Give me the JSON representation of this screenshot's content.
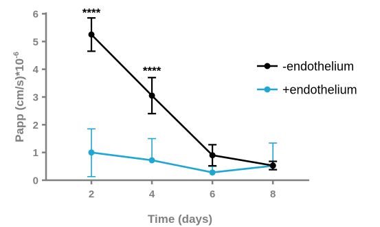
{
  "chart_data": {
    "type": "line",
    "xlabel": "Time (days)",
    "ylabel_main": "Papp (cm/s)*10",
    "ylabel_exp": "-6",
    "x": [
      2,
      4,
      6,
      8
    ],
    "x_ticks": [
      2,
      4,
      6,
      8
    ],
    "xlim": [
      0.5,
      9.2
    ],
    "y_ticks": [
      0,
      1,
      2,
      3,
      4,
      5,
      6
    ],
    "ylim": [
      0,
      6
    ],
    "grid": false,
    "legend_position": "right",
    "series": [
      {
        "name": "-endothelium",
        "color": "#000000",
        "values": [
          5.25,
          3.05,
          0.9,
          0.53
        ],
        "err_upper": [
          0.6,
          0.65,
          0.38,
          0.15
        ],
        "err_lower": [
          0.6,
          0.65,
          0.38,
          0.15
        ]
      },
      {
        "name": "+endothelium",
        "color": "#1ea6d6",
        "values": [
          1.0,
          0.72,
          0.28,
          0.52
        ],
        "err_upper": [
          0.85,
          0.78,
          0.22,
          0.82
        ],
        "err_lower": [
          0.87,
          0.0,
          0.0,
          0.0
        ]
      }
    ],
    "annotations": [
      {
        "x": 2,
        "y": 6.05,
        "text": "****"
      },
      {
        "x": 4,
        "y": 3.95,
        "text": "****"
      }
    ]
  }
}
